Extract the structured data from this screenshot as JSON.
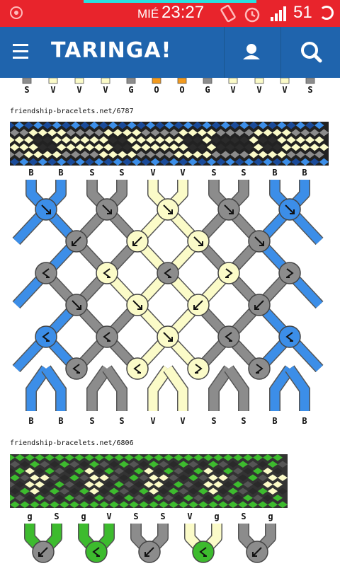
{
  "status_bar": {
    "day": "MIÉ",
    "time": "23:27",
    "battery": "51"
  },
  "app_bar": {
    "brand": "TARINGA!",
    "icons": [
      "menu-icon",
      "user-icon",
      "search-icon"
    ]
  },
  "colors": {
    "status": "#e8242c",
    "appbar": "#1f64ad",
    "blue": "#3c8ee8",
    "gray": "#8c8c8c",
    "cream": "#fbfbc8",
    "orange": "#f29a1e",
    "green": "#3dbb2e",
    "dark": "#2a2a2a"
  },
  "pattern_top": {
    "labels": [
      "S",
      "V",
      "V",
      "V",
      "G",
      "O",
      "O",
      "G",
      "V",
      "V",
      "V",
      "S"
    ]
  },
  "pattern_6787": {
    "caption": "friendship-bracelets.net/6787",
    "top_labels": [
      "B",
      "B",
      "S",
      "S",
      "V",
      "V",
      "S",
      "S",
      "B",
      "B"
    ],
    "bottom_labels": [
      "B",
      "B",
      "S",
      "S",
      "V",
      "V",
      "S",
      "S",
      "B",
      "B"
    ]
  },
  "pattern_6806": {
    "caption": "friendship-bracelets.net/6806",
    "top_labels": [
      "g",
      "S",
      "g",
      "V",
      "S",
      "S",
      "V",
      "g",
      "S",
      "g"
    ]
  }
}
